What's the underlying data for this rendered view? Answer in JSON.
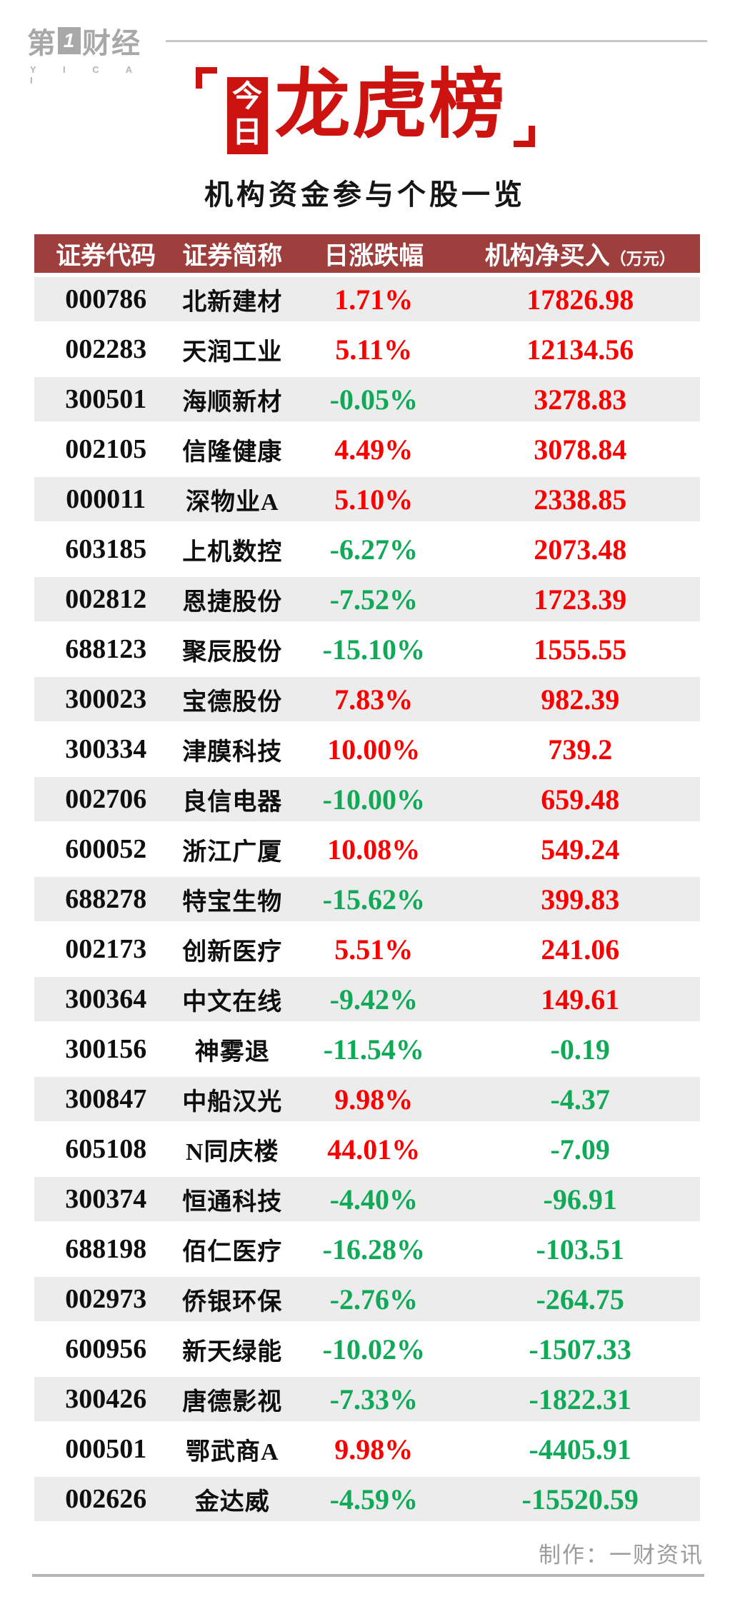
{
  "brand": {
    "logo_pre": "第",
    "logo_num": "1",
    "logo_post": "财经",
    "logo_sub": "Y I C A I"
  },
  "header": {
    "title_tag": [
      "今",
      "日"
    ],
    "title_main": "龙虎榜",
    "subtitle": "机构资金参与个股一览"
  },
  "table": {
    "columns": [
      "证券代码",
      "证券简称",
      "日涨跌幅",
      "机构净买入"
    ],
    "unit": "（万元）"
  },
  "footer": {
    "credit": "制作：一财资讯"
  },
  "colors": {
    "accent_red": "#cc1310",
    "header_bar": "#9e3f3d",
    "positive_red": "#fb0000",
    "negative_green": "#0fa958",
    "row_alt_gray": "#ececec",
    "credit_gray": "#9c9c9c"
  },
  "chart_data": {
    "type": "table",
    "title": "今日龙虎榜",
    "subtitle": "机构资金参与个股一览",
    "columns": [
      "证券代码",
      "证券简称",
      "日涨跌幅",
      "机构净买入（万元）"
    ],
    "value_color_rule": "negative values green, non-negative values red",
    "rows": [
      {
        "code": "000786",
        "name": "北新建材",
        "change_pct": "1.71%",
        "net_buy": "17826.98"
      },
      {
        "code": "002283",
        "name": "天润工业",
        "change_pct": "5.11%",
        "net_buy": "12134.56"
      },
      {
        "code": "300501",
        "name": "海顺新材",
        "change_pct": "-0.05%",
        "net_buy": "3278.83"
      },
      {
        "code": "002105",
        "name": "信隆健康",
        "change_pct": "4.49%",
        "net_buy": "3078.84"
      },
      {
        "code": "000011",
        "name": "深物业A",
        "change_pct": "5.10%",
        "net_buy": "2338.85"
      },
      {
        "code": "603185",
        "name": "上机数控",
        "change_pct": "-6.27%",
        "net_buy": "2073.48"
      },
      {
        "code": "002812",
        "name": "恩捷股份",
        "change_pct": "-7.52%",
        "net_buy": "1723.39"
      },
      {
        "code": "688123",
        "name": "聚辰股份",
        "change_pct": "-15.10%",
        "net_buy": "1555.55"
      },
      {
        "code": "300023",
        "name": "宝德股份",
        "change_pct": "7.83%",
        "net_buy": "982.39"
      },
      {
        "code": "300334",
        "name": "津膜科技",
        "change_pct": "10.00%",
        "net_buy": "739.2"
      },
      {
        "code": "002706",
        "name": "良信电器",
        "change_pct": "-10.00%",
        "net_buy": "659.48"
      },
      {
        "code": "600052",
        "name": "浙江广厦",
        "change_pct": "10.08%",
        "net_buy": "549.24"
      },
      {
        "code": "688278",
        "name": "特宝生物",
        "change_pct": "-15.62%",
        "net_buy": "399.83"
      },
      {
        "code": "002173",
        "name": "创新医疗",
        "change_pct": "5.51%",
        "net_buy": "241.06"
      },
      {
        "code": "300364",
        "name": "中文在线",
        "change_pct": "-9.42%",
        "net_buy": "149.61"
      },
      {
        "code": "300156",
        "name": "神雾退",
        "change_pct": "-11.54%",
        "net_buy": "-0.19"
      },
      {
        "code": "300847",
        "name": "中船汉光",
        "change_pct": "9.98%",
        "net_buy": "-4.37"
      },
      {
        "code": "605108",
        "name": "N同庆楼",
        "change_pct": "44.01%",
        "net_buy": "-7.09"
      },
      {
        "code": "300374",
        "name": "恒通科技",
        "change_pct": "-4.40%",
        "net_buy": "-96.91"
      },
      {
        "code": "688198",
        "name": "佰仁医疗",
        "change_pct": "-16.28%",
        "net_buy": "-103.51"
      },
      {
        "code": "002973",
        "name": "侨银环保",
        "change_pct": "-2.76%",
        "net_buy": "-264.75"
      },
      {
        "code": "600956",
        "name": "新天绿能",
        "change_pct": "-10.02%",
        "net_buy": "-1507.33"
      },
      {
        "code": "300426",
        "name": "唐德影视",
        "change_pct": "-7.33%",
        "net_buy": "-1822.31"
      },
      {
        "code": "000501",
        "name": "鄂武商A",
        "change_pct": "9.98%",
        "net_buy": "-4405.91"
      },
      {
        "code": "002626",
        "name": "金达威",
        "change_pct": "-4.59%",
        "net_buy": "-15520.59"
      }
    ]
  }
}
